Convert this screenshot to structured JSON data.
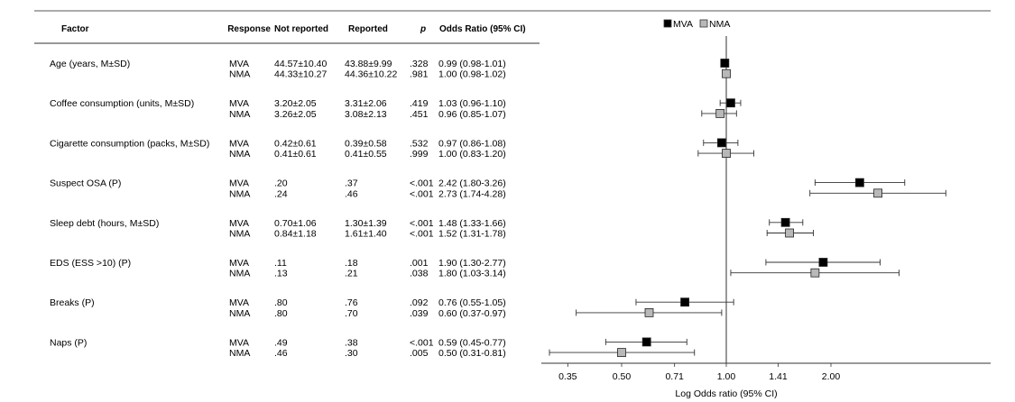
{
  "chart_data": {
    "type": "forest",
    "headers": [
      "Factor",
      "Response",
      "Not reported",
      "Reported",
      "p",
      "Odds Ratio (95% CI)"
    ],
    "legend": [
      {
        "name": "MVA",
        "color": "#000000"
      },
      {
        "name": "NMA",
        "color": "#b8b8b8"
      }
    ],
    "xlabel": "Log Odds ratio (95% CI)",
    "x_scale": "log",
    "xlim": [
      0.305,
      3.7
    ],
    "x_ticks": [
      0.35,
      0.5,
      0.71,
      1.0,
      1.41,
      2.0
    ],
    "x_tick_labels": [
      "0.35",
      "0.50",
      "0.71",
      "1.00",
      "1.41",
      "2.00"
    ],
    "reference_line": 1.0,
    "factors": [
      {
        "name": "Age (years, M±SD)",
        "rows": [
          {
            "response": "MVA",
            "not_reported": "44.57±10.40",
            "reported": "43.88±9.99",
            "p": ".328",
            "or_text": "0.99 (0.98-1.01)",
            "or": 0.99,
            "lo": 0.98,
            "hi": 1.01
          },
          {
            "response": "NMA",
            "not_reported": "44.33±10.27",
            "reported": "44.36±10.22",
            "p": ".981",
            "or_text": "1.00 (0.98-1.02)",
            "or": 1.0,
            "lo": 0.98,
            "hi": 1.02
          }
        ]
      },
      {
        "name": "Coffee consumption (units, M±SD)",
        "rows": [
          {
            "response": "MVA",
            "not_reported": "3.20±2.05",
            "reported": "3.31±2.06",
            "p": ".419",
            "or_text": "1.03 (0.96-1.10)",
            "or": 1.03,
            "lo": 0.96,
            "hi": 1.1
          },
          {
            "response": "NMA",
            "not_reported": "3.26±2.05",
            "reported": "3.08±2.13",
            "p": ".451",
            "or_text": "0.96 (0.85-1.07)",
            "or": 0.96,
            "lo": 0.85,
            "hi": 1.07
          }
        ]
      },
      {
        "name": "Cigarette consumption (packs, M±SD)",
        "rows": [
          {
            "response": "MVA",
            "not_reported": "0.42±0.61",
            "reported": "0.39±0.58",
            "p": ".532",
            "or_text": "0.97 (0.86-1.08)",
            "or": 0.97,
            "lo": 0.86,
            "hi": 1.08
          },
          {
            "response": "NMA",
            "not_reported": "0.41±0.61",
            "reported": "0.41±0.55",
            "p": ".999",
            "or_text": "1.00 (0.83-1.20)",
            "or": 1.0,
            "lo": 0.83,
            "hi": 1.2
          }
        ]
      },
      {
        "name": "Suspect OSA (P)",
        "rows": [
          {
            "response": "MVA",
            "not_reported": ".20",
            "reported": ".37",
            "p": "<.001",
            "or_text": "2.42 (1.80-3.26)",
            "or": 2.42,
            "lo": 1.8,
            "hi": 3.26
          },
          {
            "response": "NMA",
            "not_reported": ".24",
            "reported": ".46",
            "p": "<.001",
            "or_text": "2.73 (1.74-4.28)",
            "or": 2.73,
            "lo": 1.74,
            "hi": 4.28
          }
        ]
      },
      {
        "name": "Sleep debt (hours, M±SD)",
        "rows": [
          {
            "response": "MVA",
            "not_reported": "0.70±1.06",
            "reported": "1.30±1.39",
            "p": "<.001",
            "or_text": "1.48 (1.33-1.66)",
            "or": 1.48,
            "lo": 1.33,
            "hi": 1.66
          },
          {
            "response": "NMA",
            "not_reported": "0.84±1.18",
            "reported": "1.61±1.40",
            "p": "<.001",
            "or_text": "1.52 (1.31-1.78)",
            "or": 1.52,
            "lo": 1.31,
            "hi": 1.78
          }
        ]
      },
      {
        "name": "EDS (ESS >10) (P)",
        "rows": [
          {
            "response": "MVA",
            "not_reported": ".11",
            "reported": ".18",
            "p": ".001",
            "or_text": "1.90 (1.30-2.77)",
            "or": 1.9,
            "lo": 1.3,
            "hi": 2.77
          },
          {
            "response": "NMA",
            "not_reported": ".13",
            "reported": ".21",
            "p": ".038",
            "or_text": "1.80 (1.03-3.14)",
            "or": 1.8,
            "lo": 1.03,
            "hi": 3.14
          }
        ]
      },
      {
        "name": "Breaks (P)",
        "rows": [
          {
            "response": "MVA",
            "not_reported": ".80",
            "reported": ".76",
            "p": ".092",
            "or_text": "0.76 (0.55-1.05)",
            "or": 0.76,
            "lo": 0.55,
            "hi": 1.05
          },
          {
            "response": "NMA",
            "not_reported": ".80",
            "reported": ".70",
            "p": ".039",
            "or_text": "0.60 (0.37-0.97)",
            "or": 0.6,
            "lo": 0.37,
            "hi": 0.97
          }
        ]
      },
      {
        "name": "Naps (P)",
        "rows": [
          {
            "response": "MVA",
            "not_reported": ".49",
            "reported": ".38",
            "p": "<.001",
            "or_text": "0.59 (0.45-0.77)",
            "or": 0.59,
            "lo": 0.45,
            "hi": 0.77
          },
          {
            "response": "NMA",
            "not_reported": ".46",
            "reported": ".30",
            "p": ".005",
            "or_text": "0.50 (0.31-0.81)",
            "or": 0.5,
            "lo": 0.31,
            "hi": 0.81
          }
        ]
      }
    ]
  }
}
